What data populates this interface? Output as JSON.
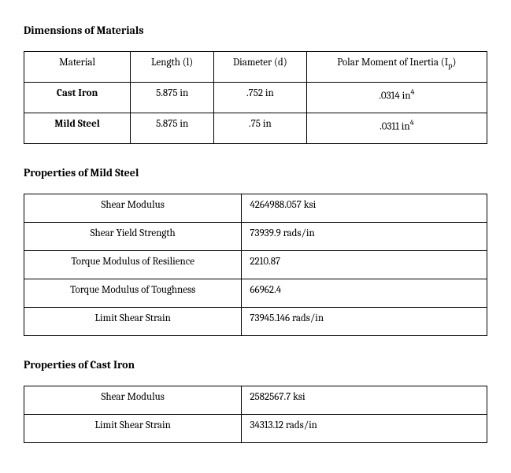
{
  "sections": {
    "dimensions": {
      "title": "Dimensions of Materials",
      "headers": {
        "material": "Material",
        "length": "Length (l)",
        "diameter": "Diameter (d)",
        "polar_head_pre": "Polar Moment of Inertia (I",
        "polar_head_sub": "p",
        "polar_head_post": ")"
      },
      "rows": [
        {
          "material": "Cast Iron",
          "length": "5.875 in",
          "diameter": ".752 in",
          "polar_val": ".0314 in",
          "polar_sup": "4"
        },
        {
          "material": "Mild Steel",
          "length": "5.875 in",
          "diameter": ".75 in",
          "polar_val": ".0311 in",
          "polar_sup": "4"
        }
      ]
    },
    "mild_steel": {
      "title": "Properties of Mild Steel",
      "rows": [
        {
          "label": "Shear Modulus",
          "value": "4264988.057 ksi"
        },
        {
          "label": "Shear Yield Strength",
          "value": "73939.9 rads/in"
        },
        {
          "label": "Torque Modulus of Resilience",
          "value": "2210.87"
        },
        {
          "label": "Torque Modulus of Toughness",
          "value": "66962.4"
        },
        {
          "label": "Limit Shear Strain",
          "value": "73945.146 rads/in"
        }
      ]
    },
    "cast_iron": {
      "title": "Properties of Cast Iron",
      "rows": [
        {
          "label": "Shear Modulus",
          "value": "2582567.7 ksi"
        },
        {
          "label": "Limit Shear Strain",
          "value": "34313.12  rads/in"
        }
      ]
    }
  },
  "style": {
    "font_family": "Cambria, Georgia, 'Times New Roman', serif",
    "heading_fontsize_pt": 11,
    "body_fontsize_pt": 10,
    "border_color": "#000000",
    "background_color": "#ffffff",
    "text_color": "#000000"
  }
}
